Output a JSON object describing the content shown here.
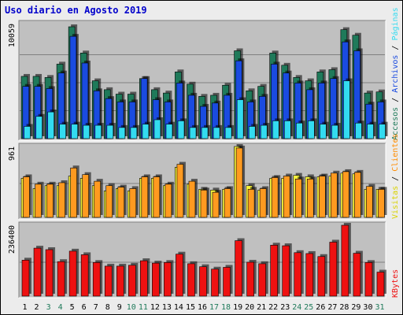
{
  "title": "Uso diario en Agosto 2019",
  "colors": {
    "background": "#ececec",
    "panel": "#c0c0c0",
    "accesos": "#1f7a5a",
    "archivos": "#1a4be0",
    "paginas": "#33dbf0",
    "visitas": "#f5f03a",
    "clientes": "#ff9a20",
    "kbytes": "#ee1111"
  },
  "axis_labels": {
    "top_max": "10059",
    "mid_max": "961",
    "bottom_max": "236400"
  },
  "right_labels": {
    "top": [
      {
        "text": "Accesos",
        "color": "#1f7a5a"
      },
      {
        "text": " / ",
        "color": "#000000"
      },
      {
        "text": "Archivos",
        "color": "#1a4be0"
      },
      {
        "text": " / ",
        "color": "#000000"
      },
      {
        "text": "Páginas",
        "color": "#33dbf0"
      }
    ],
    "mid": [
      {
        "text": "Visitas",
        "color": "#d9d200"
      },
      {
        "text": " / ",
        "color": "#000000"
      },
      {
        "text": "Clientes",
        "color": "#ff8c00"
      }
    ],
    "bottom": [
      {
        "text": "KBytes",
        "color": "#ee1111"
      }
    ]
  },
  "chart_data": {
    "type": "bar",
    "title": "Uso diario en Agosto 2019",
    "categories": [
      "1",
      "2",
      "3",
      "4",
      "5",
      "6",
      "7",
      "8",
      "9",
      "10",
      "11",
      "12",
      "13",
      "14",
      "15",
      "16",
      "17",
      "18",
      "19",
      "20",
      "21",
      "22",
      "23",
      "24",
      "25",
      "26",
      "27",
      "28",
      "29",
      "30",
      "31"
    ],
    "weekend_days": [
      "3",
      "4",
      "10",
      "11",
      "17",
      "18",
      "24",
      "25",
      "31"
    ],
    "panels": [
      {
        "name": "accesos-archivos-paginas",
        "ymax": 10059,
        "series": [
          {
            "name": "Accesos",
            "values": [
              5600,
              5600,
              5500,
              6700,
              10059,
              7700,
              5200,
              4400,
              4000,
              4000,
              5400,
              4400,
              4100,
              6000,
              4900,
              3800,
              3900,
              4800,
              7900,
              4300,
              4700,
              7700,
              6600,
              5500,
              5200,
              6000,
              6200,
              9800,
              9300,
              4100,
              4200
            ]
          },
          {
            "name": "Archivos",
            "values": [
              4700,
              4700,
              4500,
              5900,
              9200,
              6800,
              4300,
              3600,
              3300,
              3300,
              5400,
              3500,
              3300,
              5000,
              3900,
              2900,
              3200,
              3900,
              7000,
              3300,
              3800,
              6700,
              5900,
              5000,
              4400,
              5000,
              5400,
              8700,
              7900,
              3100,
              3300
            ]
          },
          {
            "name": "Páginas",
            "values": [
              1100,
              2000,
              2400,
              1300,
              1300,
              1200,
              1200,
              1200,
              1000,
              1000,
              1300,
              1700,
              1300,
              1600,
              1000,
              1000,
              1000,
              1000,
              3500,
              1100,
              1200,
              1600,
              1600,
              1400,
              1600,
              1300,
              1200,
              5200,
              1400,
              1300,
              1300
            ]
          }
        ]
      },
      {
        "name": "visitas-clientes",
        "ymax": 961,
        "series": [
          {
            "name": "Visitas",
            "values": [
              530,
              390,
              430,
              430,
              560,
              530,
              430,
              360,
              390,
              360,
              530,
              530,
              430,
              680,
              450,
              380,
              370,
              380,
              961,
              430,
              370,
              530,
              530,
              570,
              550,
              550,
              560,
              600,
              590,
              380,
              380
            ]
          },
          {
            "name": "Clientes",
            "values": [
              550,
              450,
              450,
              470,
              670,
              580,
              490,
              430,
              410,
              390,
              550,
              550,
              450,
              720,
              490,
              370,
              340,
              390,
              940,
              380,
              390,
              540,
              560,
              520,
              520,
              560,
              600,
              620,
              610,
              420,
              380
            ]
          }
        ]
      },
      {
        "name": "kbytes",
        "ymax": 236400,
        "series": [
          {
            "name": "KBytes",
            "values": [
              120000,
              160000,
              155000,
              115000,
              150000,
              138000,
              112000,
              100000,
              100000,
              103000,
              118000,
              110000,
              112000,
              140000,
              108000,
              98000,
              90000,
              96000,
              185000,
              113000,
              108000,
              170000,
              168000,
              145000,
              142000,
              132000,
              180000,
              236400,
              143000,
              112000,
              80000
            ]
          }
        ]
      }
    ]
  }
}
